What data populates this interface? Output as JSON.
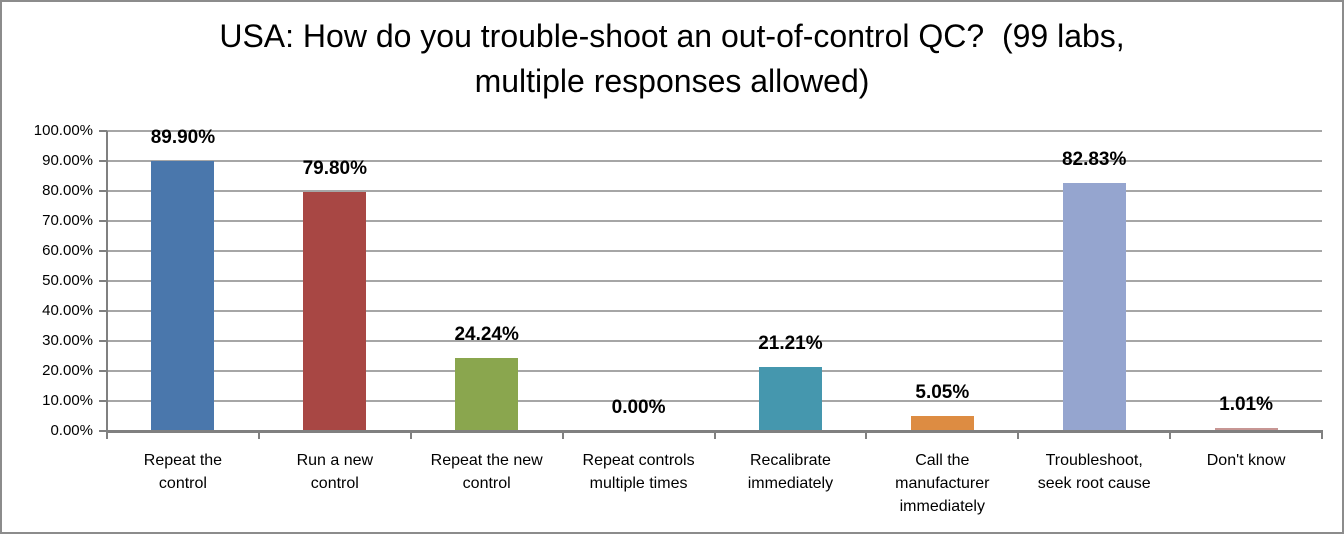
{
  "title": "USA: How do you trouble-shoot an out-of-control QC?  (99 labs, multiple responses allowed)",
  "chart_data": {
    "type": "bar",
    "title": "USA: How do you trouble-shoot an out-of-control QC?  (99 labs, multiple responses allowed)",
    "categories": [
      "Repeat the control",
      "Run a new control",
      "Repeat the new control",
      "Repeat controls multiple times",
      "Recalibrate immediately",
      "Call the manufacturer immediately",
      "Troubleshoot, seek root cause",
      "Don't know"
    ],
    "values": [
      89.9,
      79.8,
      24.24,
      0.0,
      21.21,
      5.05,
      82.83,
      1.01
    ],
    "value_labels": [
      "89.90%",
      "79.80%",
      "24.24%",
      "0.00%",
      "21.21%",
      "5.05%",
      "82.83%",
      "1.01%"
    ],
    "bar_colors": [
      "#4A77AC",
      "#A84744",
      "#8AA64E",
      null,
      "#4597AE",
      "#DD8C42",
      "#95A5CF",
      "#C79694"
    ],
    "xlabel": "",
    "ylabel": "",
    "ylim": [
      0,
      100
    ],
    "ytick_values": [
      0,
      10,
      20,
      30,
      40,
      50,
      60,
      70,
      80,
      90,
      100
    ],
    "ytick_labels": [
      "0.00%",
      "10.00%",
      "20.00%",
      "30.00%",
      "40.00%",
      "50.00%",
      "60.00%",
      "70.00%",
      "80.00%",
      "90.00%",
      "100.00%"
    ],
    "grid": "horizontal",
    "legend": "none",
    "colors": {
      "background": "#FFFFFF",
      "frame_border": "#8C8C8C",
      "gridline": "#A6A6A6",
      "axis": "#808080",
      "text": "#000000"
    }
  }
}
